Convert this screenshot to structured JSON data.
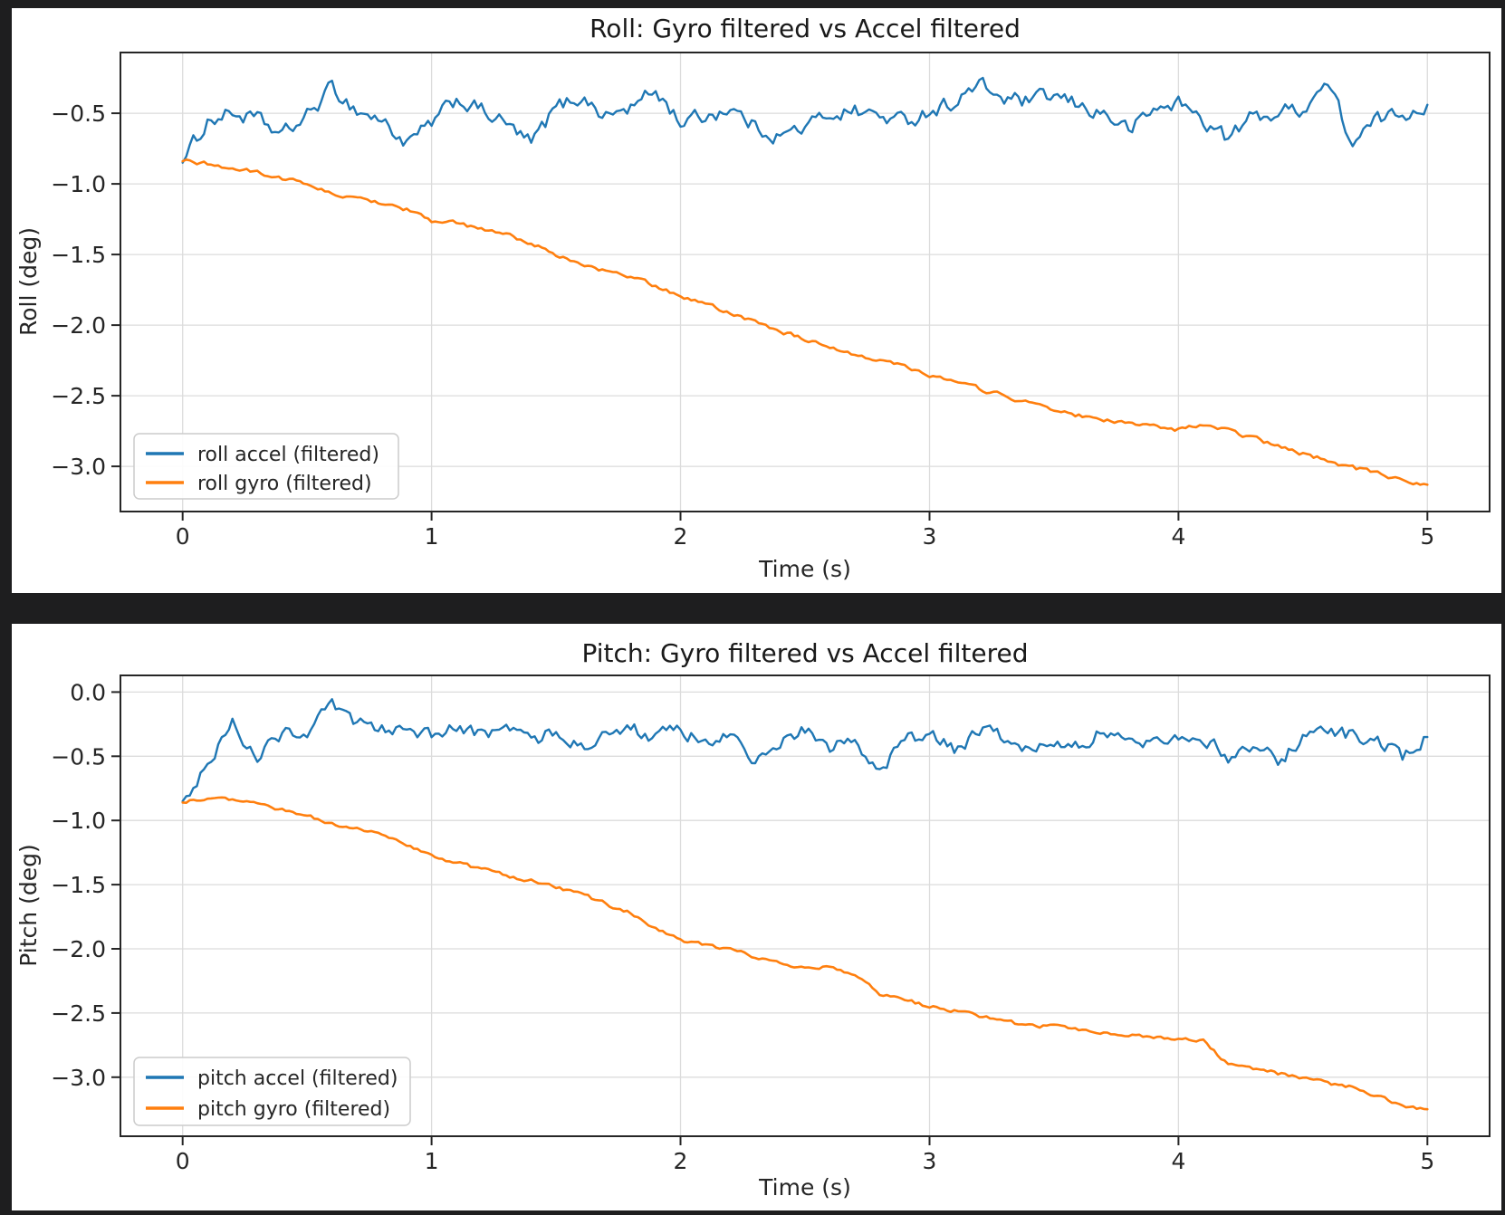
{
  "page": {
    "background_color": "#1e1e1f",
    "panel_background_color": "#ffffff"
  },
  "chart_data": [
    {
      "type": "line",
      "title": "Roll: Gyro filtered vs Accel filtered",
      "xlabel": "Time (s)",
      "ylabel": "Roll (deg)",
      "xlim": [
        -0.25,
        5.25
      ],
      "ylim": [
        -3.32,
        -0.07
      ],
      "grid": true,
      "legend_position": "lower left",
      "x_ticks": [
        0,
        1,
        2,
        3,
        4,
        5
      ],
      "x_tick_labels": [
        "0",
        "1",
        "2",
        "3",
        "4",
        "5"
      ],
      "y_ticks": [
        -0.5,
        -1.0,
        -1.5,
        -2.0,
        -2.5,
        -3.0
      ],
      "y_tick_labels": [
        "−0.5",
        "−1.0",
        "−1.5",
        "−2.0",
        "−2.5",
        "−3.0"
      ],
      "grid_color": "#dcdcdc",
      "frame_color": "#262626",
      "text_color": "#262626",
      "x_start": 0,
      "x_step": 0.1,
      "series": [
        {
          "name": "roll accel (filtered)",
          "color": "#1f77b4",
          "line_width": 2.4,
          "noise": 0.05,
          "values": [
            -0.85,
            -0.55,
            -0.5,
            -0.55,
            -0.66,
            -0.52,
            -0.32,
            -0.48,
            -0.55,
            -0.72,
            -0.58,
            -0.4,
            -0.48,
            -0.58,
            -0.72,
            -0.46,
            -0.38,
            -0.52,
            -0.46,
            -0.34,
            -0.56,
            -0.52,
            -0.46,
            -0.6,
            -0.66,
            -0.6,
            -0.5,
            -0.48,
            -0.52,
            -0.56,
            -0.48,
            -0.42,
            -0.3,
            -0.4,
            -0.42,
            -0.38,
            -0.45,
            -0.5,
            -0.62,
            -0.48,
            -0.42,
            -0.55,
            -0.68,
            -0.52,
            -0.5,
            -0.46,
            -0.28,
            -0.72,
            -0.55,
            -0.5,
            -0.44
          ]
        },
        {
          "name": "roll gyro (filtered)",
          "color": "#ff7f0e",
          "line_width": 2.6,
          "noise": 0.013,
          "values": [
            -0.84,
            -0.86,
            -0.89,
            -0.92,
            -0.96,
            -1.0,
            -1.07,
            -1.11,
            -1.13,
            -1.18,
            -1.26,
            -1.28,
            -1.32,
            -1.36,
            -1.42,
            -1.5,
            -1.57,
            -1.62,
            -1.66,
            -1.72,
            -1.8,
            -1.84,
            -1.92,
            -1.97,
            -2.04,
            -2.1,
            -2.17,
            -2.21,
            -2.24,
            -2.29,
            -2.35,
            -2.4,
            -2.45,
            -2.5,
            -2.55,
            -2.6,
            -2.64,
            -2.67,
            -2.7,
            -2.72,
            -2.74,
            -2.71,
            -2.75,
            -2.8,
            -2.86,
            -2.91,
            -2.96,
            -3.01,
            -3.05,
            -3.1,
            -3.13
          ]
        }
      ]
    },
    {
      "type": "line",
      "title": "Pitch: Gyro filtered vs Accel filtered",
      "xlabel": "Time (s)",
      "ylabel": "Pitch (deg)",
      "xlim": [
        -0.25,
        5.25
      ],
      "ylim": [
        -3.46,
        0.13
      ],
      "grid": true,
      "legend_position": "lower left",
      "x_ticks": [
        0,
        1,
        2,
        3,
        4,
        5
      ],
      "x_tick_labels": [
        "0",
        "1",
        "2",
        "3",
        "4",
        "5"
      ],
      "y_ticks": [
        0.0,
        -0.5,
        -1.0,
        -1.5,
        -2.0,
        -2.5,
        -3.0
      ],
      "y_tick_labels": [
        "0.0",
        "−0.5",
        "−1.0",
        "−1.5",
        "−2.0",
        "−2.5",
        "−3.0"
      ],
      "grid_color": "#dcdcdc",
      "frame_color": "#262626",
      "text_color": "#262626",
      "x_start": 0,
      "x_step": 0.1,
      "series": [
        {
          "name": "pitch accel (filtered)",
          "color": "#1f77b4",
          "line_width": 2.4,
          "noise": 0.05,
          "values": [
            -0.85,
            -0.55,
            -0.25,
            -0.5,
            -0.32,
            -0.3,
            -0.12,
            -0.25,
            -0.3,
            -0.25,
            -0.35,
            -0.28,
            -0.35,
            -0.25,
            -0.38,
            -0.3,
            -0.42,
            -0.35,
            -0.28,
            -0.35,
            -0.3,
            -0.4,
            -0.34,
            -0.55,
            -0.38,
            -0.3,
            -0.44,
            -0.36,
            -0.62,
            -0.38,
            -0.34,
            -0.45,
            -0.3,
            -0.36,
            -0.48,
            -0.36,
            -0.4,
            -0.3,
            -0.42,
            -0.38,
            -0.32,
            -0.36,
            -0.5,
            -0.4,
            -0.55,
            -0.36,
            -0.28,
            -0.34,
            -0.4,
            -0.5,
            -0.35
          ]
        },
        {
          "name": "pitch gyro (filtered)",
          "color": "#ff7f0e",
          "line_width": 2.6,
          "noise": 0.013,
          "values": [
            -0.86,
            -0.83,
            -0.84,
            -0.88,
            -0.92,
            -0.97,
            -1.02,
            -1.07,
            -1.1,
            -1.18,
            -1.28,
            -1.33,
            -1.38,
            -1.43,
            -1.47,
            -1.52,
            -1.57,
            -1.65,
            -1.72,
            -1.85,
            -1.93,
            -1.97,
            -2.0,
            -2.07,
            -2.12,
            -2.15,
            -2.14,
            -2.2,
            -2.35,
            -2.4,
            -2.45,
            -2.48,
            -2.52,
            -2.56,
            -2.6,
            -2.6,
            -2.63,
            -2.65,
            -2.67,
            -2.68,
            -2.7,
            -2.72,
            -2.9,
            -2.94,
            -2.97,
            -3.0,
            -3.05,
            -3.08,
            -3.15,
            -3.22,
            -3.25
          ]
        }
      ]
    }
  ]
}
